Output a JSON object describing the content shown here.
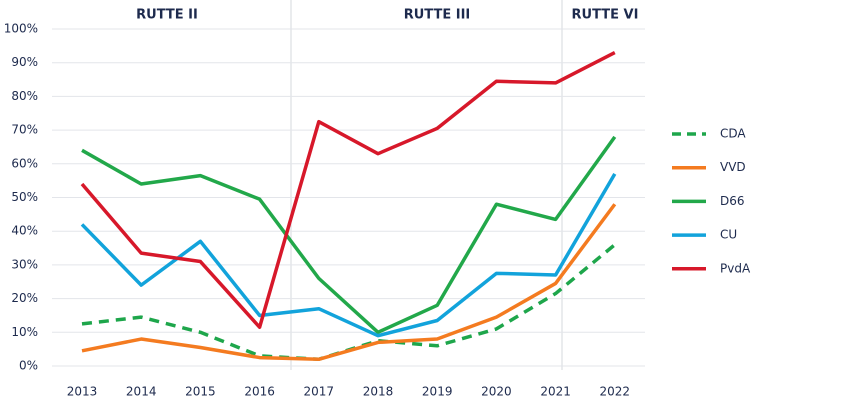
{
  "chart_data": {
    "type": "line",
    "annotations": [
      "RUTTE II",
      "RUTTE III",
      "RUTTE VI"
    ],
    "categories": [
      "2013",
      "2014",
      "2015",
      "2016",
      "2017",
      "2018",
      "2019",
      "2020",
      "2021",
      "2022"
    ],
    "series": [
      {
        "name": "CDA",
        "color": "#1ea64b",
        "dashed": true,
        "values": [
          12.5,
          14.5,
          10,
          3,
          2,
          7.5,
          6,
          11,
          21.5,
          36
        ]
      },
      {
        "name": "VVD",
        "color": "#f47b20",
        "values": [
          4.5,
          8,
          5.5,
          2.5,
          2,
          7,
          8,
          14.5,
          24.5,
          48
        ]
      },
      {
        "name": "D66",
        "color": "#22a84a",
        "values": [
          64,
          54,
          56.5,
          49.5,
          26,
          10,
          18,
          48,
          43.5,
          68
        ]
      },
      {
        "name": "CU",
        "color": "#12a3db",
        "values": [
          42,
          24,
          37,
          15,
          17,
          9,
          13.5,
          27.5,
          27,
          57
        ]
      },
      {
        "name": "PvdA",
        "color": "#d7182a",
        "values": [
          54,
          33.5,
          31,
          11.5,
          72.5,
          63,
          70.5,
          84.5,
          84,
          93
        ]
      }
    ],
    "ylim": [
      0,
      100
    ],
    "yticks": [
      {
        "value": 0,
        "label": "0%"
      },
      {
        "value": 10,
        "label": "10%"
      },
      {
        "value": 20,
        "label": "20%"
      },
      {
        "value": 30,
        "label": "30%"
      },
      {
        "value": 40,
        "label": "40%"
      },
      {
        "value": 50,
        "label": "50%"
      },
      {
        "value": 60,
        "label": "60%"
      },
      {
        "value": 70,
        "label": "70%"
      },
      {
        "value": 80,
        "label": "80%"
      },
      {
        "value": 90,
        "label": "90%"
      },
      {
        "value": 100,
        "label": "100%"
      }
    ],
    "grid": true,
    "legend": "right"
  }
}
